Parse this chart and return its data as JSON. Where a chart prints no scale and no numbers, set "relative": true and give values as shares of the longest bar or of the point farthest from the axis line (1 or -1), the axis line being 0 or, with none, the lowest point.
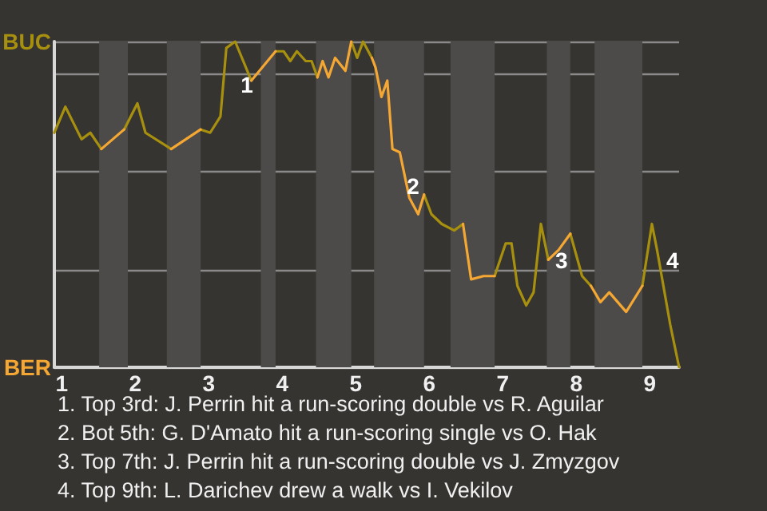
{
  "chart_data": {
    "type": "line",
    "relative": true,
    "xlim": [
      0.9,
      9.4
    ],
    "xticks": [
      1,
      2,
      3,
      4,
      5,
      6,
      7,
      8,
      9
    ],
    "grid": "y",
    "marker": "none",
    "line_style": "solid",
    "series": [
      {
        "color": "#a8900f",
        "x": [
          0.9,
          1.05,
          1.27,
          1.39,
          1.54,
          1.68,
          1.85,
          2.03,
          2.14,
          2.49,
          2.69,
          2.89,
          3.02,
          3.16,
          3.24,
          3.36,
          3.58,
          3.73,
          3.91,
          4.02,
          4.11,
          4.2,
          4.32,
          4.4,
          4.48,
          4.69,
          4.94,
          5.02,
          5.1,
          5.22,
          5.58,
          5.93,
          6.03,
          6.17,
          6.34,
          6.46,
          6.71,
          6.89,
          7.04,
          7.12,
          7.2,
          7.32,
          7.42,
          7.52,
          7.62,
          7.7,
          7.92,
          8.08,
          8.2,
          8.5,
          8.9,
          9.03,
          9.1,
          9.28,
          9.4
        ],
        "values": [
          0.72,
          0.8,
          0.7,
          0.72,
          0.67,
          null,
          0.73,
          0.81,
          0.72,
          0.67,
          null,
          0.73,
          0.72,
          0.77,
          0.98,
          1,
          0.88,
          null,
          0.97,
          0.97,
          0.94,
          0.97,
          0.94,
          0.94,
          0.89,
          null,
          1,
          0.95,
          1,
          0.95,
          null,
          0.53,
          0.47,
          0.44,
          0.42,
          0.44,
          null,
          0.28,
          0.38,
          0.38,
          0.25,
          0.19,
          0.23,
          0.44,
          0.33,
          null,
          0.41,
          0.28,
          0.25,
          null,
          0.25,
          0.44,
          0.36,
          0.13,
          0
        ]
      },
      {
        "color": "#f5a733",
        "x": [
          1.54,
          1.85,
          2.0,
          2.49,
          2.89,
          3.22,
          3.58,
          3.91,
          4.23,
          4.48,
          4.55,
          4.63,
          4.72,
          4.86,
          4.94,
          5.08,
          5.22,
          5.27,
          5.35,
          5.43,
          5.5,
          5.6,
          5.73,
          5.85,
          5.93,
          6.17,
          6.46,
          6.57,
          6.74,
          6.89,
          7.3,
          7.62,
          7.76,
          7.92,
          8.05,
          8.2,
          8.33,
          8.45,
          8.68,
          8.9
        ],
        "values": [
          0.67,
          0.73,
          null,
          0.67,
          0.73,
          null,
          0.88,
          0.97,
          null,
          0.89,
          0.94,
          0.89,
          0.95,
          0.91,
          1,
          null,
          0.95,
          0.92,
          0.83,
          0.88,
          0.67,
          0.66,
          0.52,
          0.47,
          0.53,
          null,
          0.44,
          0.27,
          0.28,
          0.28,
          null,
          0.33,
          0.36,
          0.41,
          null,
          0.25,
          0.2,
          0.23,
          0.17,
          0.25
        ]
      }
    ],
    "bands": [
      {
        "axis": "x",
        "from": 1.51,
        "to": 1.9,
        "color": "#4c4b49"
      },
      {
        "axis": "x",
        "from": 2.43,
        "to": 2.89,
        "color": "#4c4b49"
      },
      {
        "axis": "x",
        "from": 3.71,
        "to": 3.91,
        "color": "#4c4b49"
      },
      {
        "axis": "x",
        "from": 4.46,
        "to": 4.94,
        "color": "#4c4b49"
      },
      {
        "axis": "x",
        "from": 5.25,
        "to": 5.93,
        "color": "#4c4b49"
      },
      {
        "axis": "x",
        "from": 6.29,
        "to": 6.89,
        "color": "#4c4b49"
      },
      {
        "axis": "x",
        "from": 7.6,
        "to": 7.92,
        "color": "#4c4b49"
      },
      {
        "axis": "x",
        "from": 8.25,
        "to": 8.9,
        "color": "#4c4b49"
      }
    ],
    "annotations": [
      "BUC",
      "BER",
      {
        "text": "1",
        "x": 3.24,
        "y": 0.98
      },
      {
        "text": "2",
        "x": 5.5,
        "y": 0.67
      },
      {
        "text": "3",
        "x": 7.52,
        "y": 0.44
      },
      {
        "text": "4",
        "x": 9.03,
        "y": 0.44
      },
      "1. Top 3rd: J. Perrin hit a run-scoring double vs R. Aguilar",
      "2. Bot 5th: G. D'Amato hit a run-scoring single vs O. Hak",
      "3. Top 7th: J. Perrin hit a run-scoring double vs J. Zmyzgov",
      "4. Top 9th: L. Darichev drew a walk vs I. Vekilov"
    ]
  }
}
